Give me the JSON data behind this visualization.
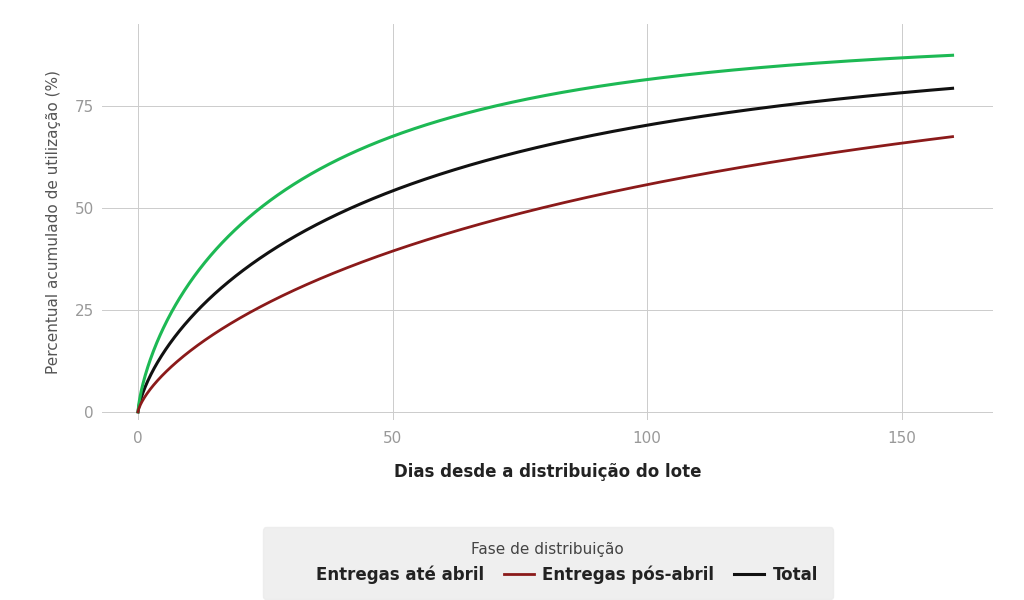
{
  "ylabel": "Percentual acumulado de utilização (%)",
  "xlabel": "Dias desde a distribuição do lote",
  "legend_title": "Fase de distribuição",
  "legend_labels": [
    "Entregas até abril",
    "Entregas pós-abril",
    "Total"
  ],
  "line_colors": [
    "#1db954",
    "#8b1a1a",
    "#111111"
  ],
  "background_color": "#ffffff",
  "plot_bg_color": "#ffffff",
  "grid_color": "#cccccc",
  "xlim": [
    -7,
    168
  ],
  "ylim": [
    -2,
    95
  ],
  "xticks": [
    0,
    50,
    100,
    150
  ],
  "yticks": [
    0,
    25,
    50,
    75
  ],
  "legend_bg_color": "#ebebeb"
}
